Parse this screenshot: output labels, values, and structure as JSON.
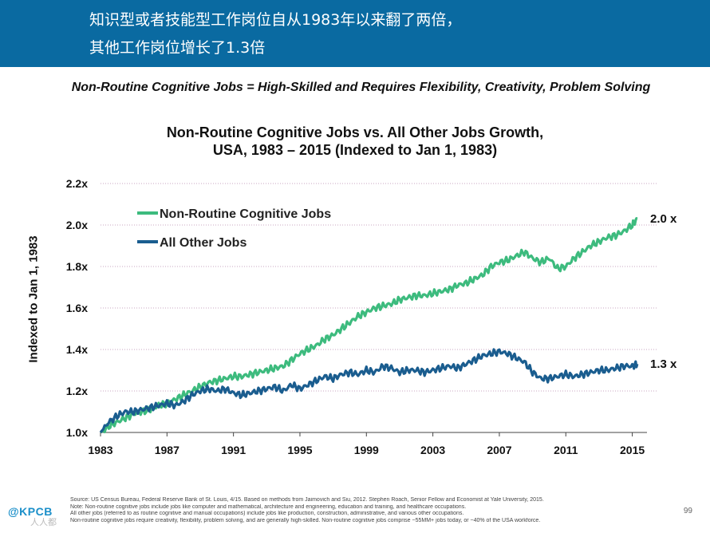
{
  "banner": {
    "line1": "知识型或者技能型工作岗位自从1983年以来翻了两倍，",
    "line2": "其他工作岗位增长了1.3倍",
    "color": "#0a6aa1"
  },
  "subtitle": "Non-Routine Cognitive Jobs = High-Skilled and Requires Flexibility, Creativity, Problem Solving",
  "chart_data": {
    "type": "line",
    "title_line1": "Non-Routine Cognitive Jobs vs. All Other Jobs Growth,",
    "title_line2": "USA, 1983 – 2015 (Indexed to Jan 1, 1983)",
    "xlabel": "",
    "ylabel": "Indexed to Jan 1, 1983",
    "xlim": [
      1983,
      2015.5
    ],
    "ylim": [
      1.0,
      2.2
    ],
    "x_ticks": [
      1983,
      1987,
      1991,
      1995,
      1999,
      2003,
      2007,
      2011,
      2015
    ],
    "x_tick_labels": [
      "1983",
      "1987",
      "1991",
      "1995",
      "1999",
      "2003",
      "2007",
      "2011",
      "2015"
    ],
    "y_ticks": [
      1.0,
      1.2,
      1.4,
      1.6,
      1.8,
      2.0,
      2.2
    ],
    "y_tick_labels": [
      "1.0x",
      "1.2x",
      "1.4x",
      "1.6x",
      "1.8x",
      "2.0x",
      "2.2x"
    ],
    "grid": "horizontal dotted",
    "legend_position": "top-left",
    "series": [
      {
        "name": "Non-Routine Cognitive Jobs",
        "color": "#3dbb7e",
        "end_label": "2.0 x",
        "x": [
          1983,
          1983.5,
          1984,
          1984.5,
          1985,
          1985.5,
          1986,
          1986.5,
          1987,
          1987.5,
          1988,
          1988.5,
          1989,
          1989.5,
          1990,
          1990.5,
          1991,
          1991.5,
          1992,
          1992.5,
          1993,
          1993.5,
          1994,
          1994.5,
          1995,
          1995.5,
          1996,
          1996.5,
          1997,
          1997.5,
          1998,
          1998.5,
          1999,
          1999.5,
          2000,
          2000.5,
          2001,
          2001.5,
          2002,
          2002.5,
          2003,
          2003.5,
          2004,
          2004.5,
          2005,
          2005.5,
          2006,
          2006.5,
          2007,
          2007.5,
          2008,
          2008.5,
          2009,
          2009.5,
          2010,
          2010.5,
          2011,
          2011.5,
          2012,
          2012.5,
          2013,
          2013.5,
          2014,
          2014.5,
          2015,
          2015.3
        ],
        "values": [
          1.0,
          1.03,
          1.05,
          1.07,
          1.09,
          1.1,
          1.11,
          1.13,
          1.14,
          1.16,
          1.18,
          1.2,
          1.22,
          1.24,
          1.25,
          1.26,
          1.27,
          1.27,
          1.28,
          1.29,
          1.3,
          1.31,
          1.32,
          1.35,
          1.38,
          1.4,
          1.42,
          1.45,
          1.47,
          1.5,
          1.53,
          1.56,
          1.58,
          1.6,
          1.61,
          1.62,
          1.64,
          1.65,
          1.66,
          1.66,
          1.67,
          1.68,
          1.69,
          1.71,
          1.72,
          1.74,
          1.76,
          1.8,
          1.82,
          1.83,
          1.85,
          1.87,
          1.84,
          1.82,
          1.84,
          1.79,
          1.8,
          1.84,
          1.87,
          1.9,
          1.92,
          1.94,
          1.95,
          1.97,
          2.0,
          2.03
        ]
      },
      {
        "name": "All Other Jobs",
        "color": "#1a5d8f",
        "end_label": "1.3 x",
        "x": [
          1983,
          1983.5,
          1984,
          1984.5,
          1985,
          1985.5,
          1986,
          1986.5,
          1987,
          1987.5,
          1988,
          1988.5,
          1989,
          1989.5,
          1990,
          1990.5,
          1991,
          1991.5,
          1992,
          1992.5,
          1993,
          1993.5,
          1994,
          1994.5,
          1995,
          1995.5,
          1996,
          1996.5,
          1997,
          1997.5,
          1998,
          1998.5,
          1999,
          1999.5,
          2000,
          2000.5,
          2001,
          2001.5,
          2002,
          2002.5,
          2003,
          2003.5,
          2004,
          2004.5,
          2005,
          2005.5,
          2006,
          2006.5,
          2007,
          2007.5,
          2008,
          2008.5,
          2009,
          2009.5,
          2010,
          2010.5,
          2011,
          2011.5,
          2012,
          2012.5,
          2013,
          2013.5,
          2014,
          2014.5,
          2015,
          2015.3
        ],
        "values": [
          1.0,
          1.05,
          1.08,
          1.1,
          1.1,
          1.11,
          1.12,
          1.13,
          1.14,
          1.13,
          1.15,
          1.18,
          1.2,
          1.21,
          1.2,
          1.21,
          1.19,
          1.18,
          1.19,
          1.2,
          1.21,
          1.22,
          1.2,
          1.23,
          1.21,
          1.23,
          1.25,
          1.27,
          1.26,
          1.28,
          1.29,
          1.28,
          1.3,
          1.29,
          1.32,
          1.31,
          1.29,
          1.3,
          1.3,
          1.29,
          1.3,
          1.31,
          1.32,
          1.31,
          1.33,
          1.35,
          1.37,
          1.38,
          1.39,
          1.38,
          1.36,
          1.34,
          1.29,
          1.26,
          1.26,
          1.27,
          1.28,
          1.27,
          1.28,
          1.29,
          1.3,
          1.3,
          1.31,
          1.32,
          1.32,
          1.33
        ]
      }
    ]
  },
  "source_lines": [
    "Source: US Census Bureau, Federal Reserve Bank of St. Louis, 4/15. Based on methods from Jaimovich and Siu, 2012. Stephen Roach, Senior Fellow and Economist at Yale University, 2015.",
    "Note: Non-routine cognitive jobs include  jobs like computer and mathematical, architecture and engineering, education and training, and healthcare occupations.",
    "All other jobs (referred to as routine cognitive and manual occupations) include jobs like production, construction, administrative, and various other occupations.",
    "Non-routine cognitive jobs require creativity, flexibility, problem solving, and are generally high-skilled. Non-routine cognitive jobs comprise ~55MM+ jobs today, or ~40% of the USA workforce."
  ],
  "page_number": "99",
  "logo": "@KPCB",
  "watermark": "人人都"
}
